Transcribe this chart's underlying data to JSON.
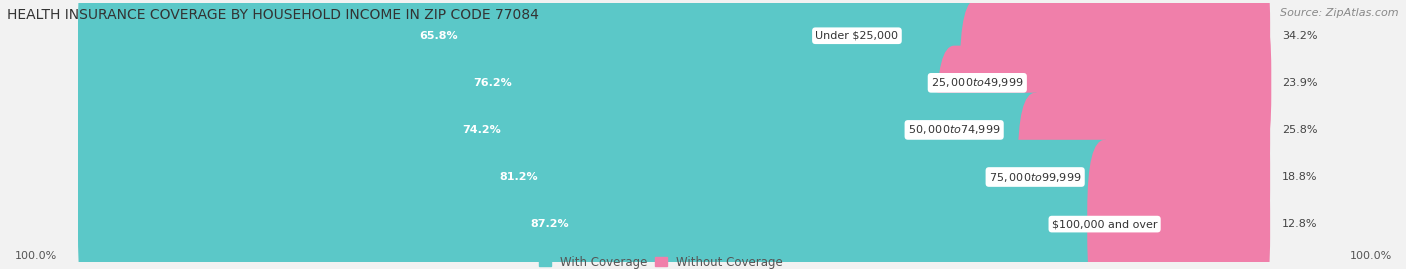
{
  "title": "HEALTH INSURANCE COVERAGE BY HOUSEHOLD INCOME IN ZIP CODE 77084",
  "source": "Source: ZipAtlas.com",
  "categories": [
    "Under $25,000",
    "$25,000 to $49,999",
    "$50,000 to $74,999",
    "$75,000 to $99,999",
    "$100,000 and over"
  ],
  "with_coverage": [
    65.8,
    76.2,
    74.2,
    81.2,
    87.2
  ],
  "without_coverage": [
    34.2,
    23.9,
    25.8,
    18.8,
    12.8
  ],
  "teal_color": "#5BC8C8",
  "pink_color": "#F07FAA",
  "bg_color": "#f2f2f2",
  "bar_bg_color": "#e0e0e0",
  "title_fontsize": 10,
  "pct_fontsize": 8,
  "cat_fontsize": 8,
  "source_fontsize": 8,
  "legend_fontsize": 8.5
}
